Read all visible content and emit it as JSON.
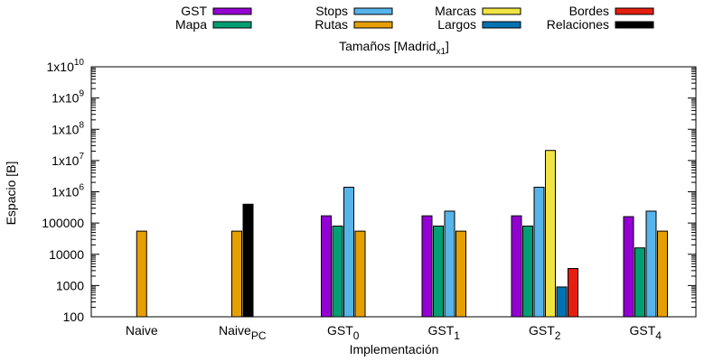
{
  "chart_data": {
    "type": "bar",
    "title": "Tamaños [Madrid",
    "title_sub": "x1",
    "title_end": "]",
    "xlabel": "Implementación",
    "ylabel": "Espacio [B]",
    "yscale": "log",
    "ylim": [
      100,
      10000000000
    ],
    "grid": false,
    "legend_position": "top",
    "categories": [
      {
        "main": "Naive",
        "sub": ""
      },
      {
        "main": "Naive",
        "sub": "PC"
      },
      {
        "main": "GST",
        "sub": "0"
      },
      {
        "main": "GST",
        "sub": "1"
      },
      {
        "main": "GST",
        "sub": "2"
      },
      {
        "main": "GST",
        "sub": "4"
      }
    ],
    "ytick_labels": [
      {
        "value": 100,
        "text": "100",
        "sup": ""
      },
      {
        "value": 1000,
        "text": "1000",
        "sup": ""
      },
      {
        "value": 10000,
        "text": "10000",
        "sup": ""
      },
      {
        "value": 100000,
        "text": "100000",
        "sup": ""
      },
      {
        "value": 1000000,
        "text": "1x10",
        "sup": "6"
      },
      {
        "value": 10000000,
        "text": "1x10",
        "sup": "7"
      },
      {
        "value": 100000000,
        "text": "1x10",
        "sup": "8"
      },
      {
        "value": 1000000000,
        "text": "1x10",
        "sup": "9"
      },
      {
        "value": 10000000000,
        "text": "1x10",
        "sup": "10"
      }
    ],
    "series": [
      {
        "name": "GST",
        "color": "#9400d3",
        "values": [
          null,
          null,
          170000,
          170000,
          170000,
          160000
        ]
      },
      {
        "name": "Mapa",
        "color": "#009e73",
        "values": [
          null,
          null,
          80000,
          80000,
          80000,
          16000
        ]
      },
      {
        "name": "Stops",
        "color": "#56b4e9",
        "values": [
          null,
          null,
          1400000,
          240000,
          1400000,
          240000
        ]
      },
      {
        "name": "Rutas",
        "color": "#e69f00",
        "values": [
          55000,
          55000,
          55000,
          55000,
          null,
          55000
        ]
      },
      {
        "name": "Marcas",
        "color": "#f0e442",
        "values": [
          null,
          null,
          null,
          null,
          21000000,
          null
        ]
      },
      {
        "name": "Largos",
        "color": "#0072b2",
        "values": [
          null,
          null,
          null,
          null,
          900,
          null
        ]
      },
      {
        "name": "Bordes",
        "color": "#e51e10",
        "values": [
          null,
          null,
          null,
          null,
          3500,
          null
        ]
      },
      {
        "name": "Relaciones",
        "color": "#000000",
        "values": [
          null,
          400000,
          null,
          null,
          null,
          null
        ]
      }
    ]
  }
}
